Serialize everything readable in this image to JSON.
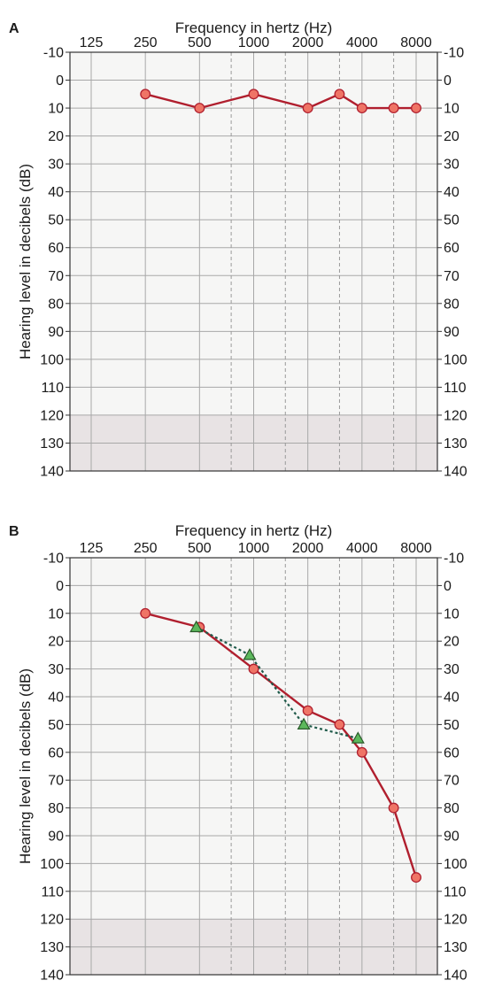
{
  "chart_data": [
    {
      "type": "line",
      "panel_label": "A",
      "title": "Frequency in hertz (Hz)",
      "xlabel": "Frequency in hertz (Hz)",
      "ylabel": "Hearing level in decibels (dB)",
      "x_scale": "log2",
      "x_ticks": [
        "125",
        "250",
        "500",
        "1000",
        "2000",
        "4000",
        "8000"
      ],
      "x_intermediate_freqs": [
        750,
        1500,
        3000,
        6000
      ],
      "y_ticks": [
        "-10",
        "0",
        "10",
        "20",
        "30",
        "40",
        "50",
        "60",
        "70",
        "80",
        "90",
        "100",
        "110",
        "120",
        "130",
        "140"
      ],
      "ylim": [
        -10,
        140
      ],
      "y_inverted": true,
      "shaded_region": [
        120,
        140
      ],
      "grid": true,
      "series": [
        {
          "marker": "circle",
          "color": "#b01f2e",
          "marker_fill": "#ef7466",
          "line_style": "solid",
          "points": [
            {
              "x": 250,
              "y": 5
            },
            {
              "x": 500,
              "y": 10
            },
            {
              "x": 1000,
              "y": 5
            },
            {
              "x": 2000,
              "y": 10
            },
            {
              "x": 3000,
              "y": 5
            },
            {
              "x": 4000,
              "y": 10
            },
            {
              "x": 6000,
              "y": 10
            },
            {
              "x": 8000,
              "y": 10
            }
          ]
        }
      ]
    },
    {
      "type": "line",
      "panel_label": "B",
      "title": "Frequency in hertz (Hz)",
      "xlabel": "Frequency in hertz (Hz)",
      "ylabel": "Hearing level in decibels (dB)",
      "x_scale": "log2",
      "x_ticks": [
        "125",
        "250",
        "500",
        "1000",
        "2000",
        "4000",
        "8000"
      ],
      "x_intermediate_freqs": [
        750,
        1500,
        3000,
        6000
      ],
      "y_ticks": [
        "-10",
        "0",
        "10",
        "20",
        "30",
        "40",
        "50",
        "60",
        "70",
        "80",
        "90",
        "100",
        "110",
        "120",
        "130",
        "140"
      ],
      "ylim": [
        -10,
        140
      ],
      "y_inverted": true,
      "shaded_region": [
        120,
        140
      ],
      "grid": true,
      "series": [
        {
          "marker": "circle",
          "color": "#b01f2e",
          "marker_fill": "#ef7466",
          "line_style": "solid",
          "points": [
            {
              "x": 250,
              "y": 10
            },
            {
              "x": 500,
              "y": 15
            },
            {
              "x": 1000,
              "y": 30
            },
            {
              "x": 2000,
              "y": 45
            },
            {
              "x": 3000,
              "y": 50
            },
            {
              "x": 4000,
              "y": 60
            },
            {
              "x": 6000,
              "y": 80
            },
            {
              "x": 8000,
              "y": 105
            }
          ]
        },
        {
          "marker": "triangle",
          "color": "#1f5a4a",
          "marker_fill": "#5cb85c",
          "line_style": "dotted",
          "points": [
            {
              "x": 480,
              "y": 15
            },
            {
              "x": 950,
              "y": 25
            },
            {
              "x": 1900,
              "y": 50
            },
            {
              "x": 3800,
              "y": 55
            }
          ]
        }
      ]
    }
  ]
}
